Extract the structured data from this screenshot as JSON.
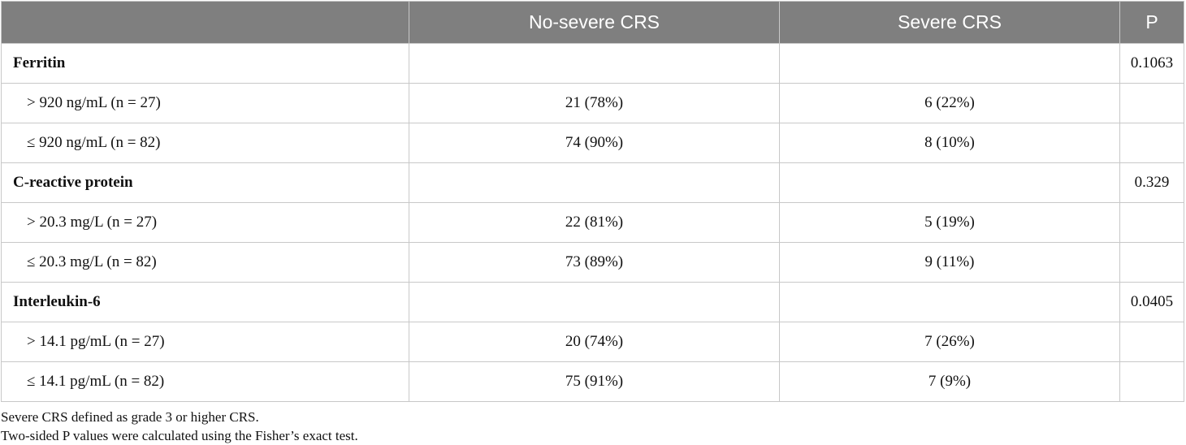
{
  "table": {
    "headers": [
      "",
      "No-severe CRS",
      "Severe CRS",
      "P"
    ],
    "rows": [
      {
        "kind": "group",
        "label": "Ferritin",
        "no_severe": "",
        "severe": "",
        "p": "0.1063"
      },
      {
        "kind": "sub",
        "label": "> 920 ng/mL (n = 27)",
        "no_severe": "21 (78%)",
        "severe": "6 (22%)",
        "p": ""
      },
      {
        "kind": "sub",
        "label": "≤ 920 ng/mL (n = 82)",
        "no_severe": "74 (90%)",
        "severe": "8 (10%)",
        "p": ""
      },
      {
        "kind": "group",
        "label": "C-reactive protein",
        "no_severe": "",
        "severe": "",
        "p": "0.329"
      },
      {
        "kind": "sub",
        "label": "> 20.3 mg/L (n = 27)",
        "no_severe": "22 (81%)",
        "severe": "5 (19%)",
        "p": ""
      },
      {
        "kind": "sub",
        "label": "≤ 20.3 mg/L (n = 82)",
        "no_severe": "73 (89%)",
        "severe": "9 (11%)",
        "p": ""
      },
      {
        "kind": "group",
        "label": "Interleukin-6",
        "no_severe": "",
        "severe": "",
        "p": "0.0405"
      },
      {
        "kind": "sub",
        "label": "> 14.1 pg/mL (n = 27)",
        "no_severe": "20 (74%)",
        "severe": "7 (26%)",
        "p": ""
      },
      {
        "kind": "sub",
        "label": "≤ 14.1 pg/mL (n = 82)",
        "no_severe": "75 (91%)",
        "severe": "7 (9%)",
        "p": ""
      }
    ]
  },
  "footnotes": [
    "Severe CRS defined as grade 3 or higher CRS.",
    "Two-sided P values were calculated using the Fisher’s exact test."
  ]
}
